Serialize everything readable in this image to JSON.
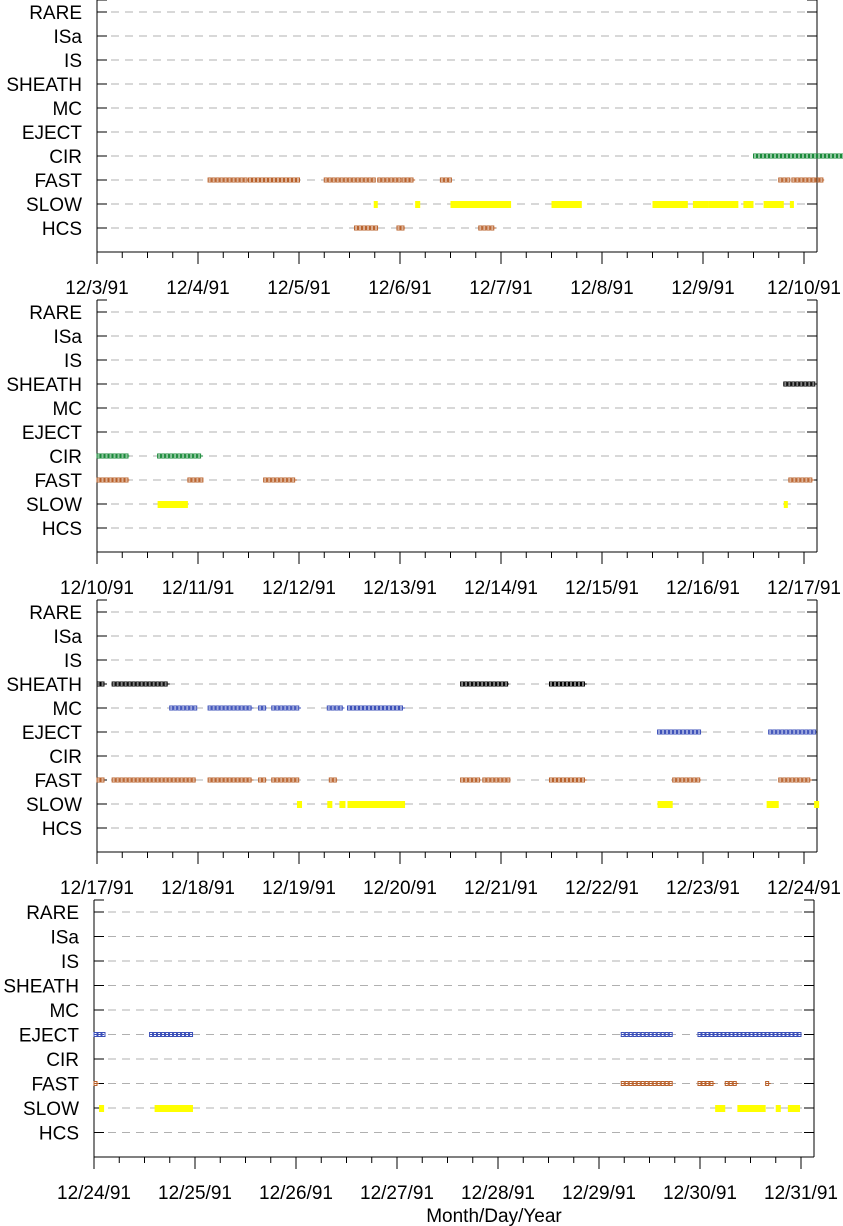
{
  "chart_data": [
    {
      "type": "scatter",
      "categories": [
        "RARE",
        "ISa",
        "IS",
        "SHEATH",
        "MC",
        "EJECT",
        "CIR",
        "FAST",
        "SLOW",
        "HCS"
      ],
      "x_ticks": [
        "12/3/91",
        "12/4/91",
        "12/5/91",
        "12/6/91",
        "12/7/91",
        "12/8/91",
        "12/9/91",
        "12/10/91"
      ],
      "grid": "dashed horizontal",
      "series": [
        {
          "category": "CIR",
          "color": "#1a8a3a",
          "style": "boxes",
          "intervals": [
            [
              6.5,
              7.5
            ],
            [
              7.6,
              8.2
            ]
          ]
        },
        {
          "category": "FAST",
          "color": "#b8602a",
          "style": "boxes",
          "intervals": [
            [
              1.1,
              1.5
            ],
            [
              1.5,
              2.0
            ],
            [
              2.25,
              2.75
            ],
            [
              2.78,
              3.0
            ],
            [
              3.02,
              3.15
            ],
            [
              3.4,
              3.5
            ],
            [
              6.75,
              6.85
            ],
            [
              6.88,
              7.2
            ]
          ]
        },
        {
          "category": "SLOW",
          "color": "#ffff00",
          "style": "bar",
          "intervals": [
            [
              2.74,
              2.78
            ],
            [
              3.15,
              3.2
            ],
            [
              3.5,
              4.1
            ],
            [
              4.5,
              4.8
            ],
            [
              5.5,
              5.85
            ],
            [
              5.9,
              6.05
            ],
            [
              6.05,
              6.35
            ],
            [
              6.4,
              6.5
            ],
            [
              6.6,
              6.8
            ],
            [
              6.86,
              6.9
            ]
          ]
        },
        {
          "category": "HCS",
          "color": "#b8602a",
          "style": "boxes",
          "intervals": [
            [
              2.55,
              2.78
            ],
            [
              2.97,
              3.05
            ],
            [
              3.78,
              3.95
            ]
          ]
        }
      ]
    },
    {
      "type": "scatter",
      "categories": [
        "RARE",
        "ISa",
        "IS",
        "SHEATH",
        "MC",
        "EJECT",
        "CIR",
        "FAST",
        "SLOW",
        "HCS"
      ],
      "x_ticks": [
        "12/10/91",
        "12/11/91",
        "12/12/91",
        "12/13/91",
        "12/14/91",
        "12/15/91",
        "12/16/91",
        "12/17/91"
      ],
      "grid": "dashed horizontal",
      "series": [
        {
          "category": "SHEATH",
          "color": "#000000",
          "style": "boxes",
          "intervals": [
            [
              6.8,
              7.1
            ]
          ]
        },
        {
          "category": "CIR",
          "color": "#1a8a3a",
          "style": "boxes",
          "intervals": [
            [
              0.0,
              0.32
            ],
            [
              0.6,
              1.05
            ]
          ]
        },
        {
          "category": "FAST",
          "color": "#b8602a",
          "style": "boxes",
          "intervals": [
            [
              0.0,
              0.32
            ],
            [
              0.9,
              1.05
            ],
            [
              1.65,
              1.98
            ],
            [
              6.85,
              7.1
            ]
          ]
        },
        {
          "category": "SLOW",
          "color": "#ffff00",
          "style": "bar",
          "intervals": [
            [
              0.6,
              0.9
            ],
            [
              6.8,
              6.84
            ]
          ]
        }
      ]
    },
    {
      "type": "scatter",
      "categories": [
        "RARE",
        "ISa",
        "IS",
        "SHEATH",
        "MC",
        "EJECT",
        "CIR",
        "FAST",
        "SLOW",
        "HCS"
      ],
      "x_ticks": [
        "12/17/91",
        "12/18/91",
        "12/19/91",
        "12/20/91",
        "12/21/91",
        "12/22/91",
        "12/23/91",
        "12/24/91"
      ],
      "grid": "dashed horizontal",
      "series": [
        {
          "category": "SHEATH",
          "color": "#000000",
          "style": "boxes",
          "intervals": [
            [
              0.0,
              0.07
            ],
            [
              0.15,
              0.72
            ],
            [
              3.6,
              4.08
            ],
            [
              4.48,
              4.85
            ]
          ]
        },
        {
          "category": "MC",
          "color": "#3b4fb8",
          "style": "boxes",
          "intervals": [
            [
              0.72,
              0.98
            ],
            [
              1.1,
              1.55
            ],
            [
              1.6,
              1.68
            ],
            [
              1.73,
              2.02
            ],
            [
              2.28,
              2.45
            ],
            [
              2.48,
              3.05
            ]
          ]
        },
        {
          "category": "EJECT",
          "color": "#3b4fb8",
          "style": "boxes",
          "intervals": [
            [
              5.55,
              5.98
            ],
            [
              6.65,
              7.12
            ]
          ]
        },
        {
          "category": "FAST",
          "color": "#b8602a",
          "style": "boxes",
          "intervals": [
            [
              0.0,
              0.07
            ],
            [
              0.15,
              0.98
            ],
            [
              1.1,
              1.55
            ],
            [
              1.6,
              1.68
            ],
            [
              1.73,
              2.0
            ],
            [
              2.3,
              2.38
            ],
            [
              3.6,
              3.8
            ],
            [
              3.82,
              4.08
            ],
            [
              4.48,
              4.85
            ],
            [
              5.7,
              5.98
            ],
            [
              6.75,
              7.08
            ]
          ]
        },
        {
          "category": "SLOW",
          "color": "#ffff00",
          "style": "bar",
          "intervals": [
            [
              1.98,
              2.03
            ],
            [
              2.28,
              2.33
            ],
            [
              2.4,
              2.46
            ],
            [
              2.48,
              3.05
            ],
            [
              5.55,
              5.7
            ],
            [
              6.63,
              6.75
            ],
            [
              7.1,
              7.15
            ]
          ]
        }
      ]
    },
    {
      "type": "scatter",
      "categories": [
        "RARE",
        "ISa",
        "IS",
        "SHEATH",
        "MC",
        "EJECT",
        "CIR",
        "FAST",
        "SLOW",
        "HCS"
      ],
      "x_ticks": [
        "12/24/91",
        "12/25/91",
        "12/26/91",
        "12/27/91",
        "12/28/91",
        "12/29/91",
        "12/30/91",
        "12/31/91"
      ],
      "xlabel": "Month/Day/Year",
      "grid": "dashed horizontal",
      "series": [
        {
          "category": "EJECT",
          "color": "#3b4fb8",
          "style": "boxes",
          "intervals": [
            [
              0.0,
              0.1
            ],
            [
              0.55,
              0.98
            ],
            [
              5.22,
              5.72
            ],
            [
              5.98,
              7.0
            ]
          ]
        },
        {
          "category": "FAST",
          "color": "#b8602a",
          "style": "boxes",
          "intervals": [
            [
              0.0,
              0.05
            ],
            [
              5.22,
              5.72
            ],
            [
              5.98,
              6.15
            ],
            [
              6.25,
              6.38
            ],
            [
              6.65,
              6.7
            ]
          ]
        },
        {
          "category": "SLOW",
          "color": "#ffff00",
          "style": "bar",
          "intervals": [
            [
              0.05,
              0.1
            ],
            [
              0.6,
              0.98
            ],
            [
              6.15,
              6.25
            ],
            [
              6.37,
              6.65
            ],
            [
              6.75,
              6.8
            ],
            [
              6.87,
              6.99
            ]
          ]
        }
      ]
    }
  ]
}
